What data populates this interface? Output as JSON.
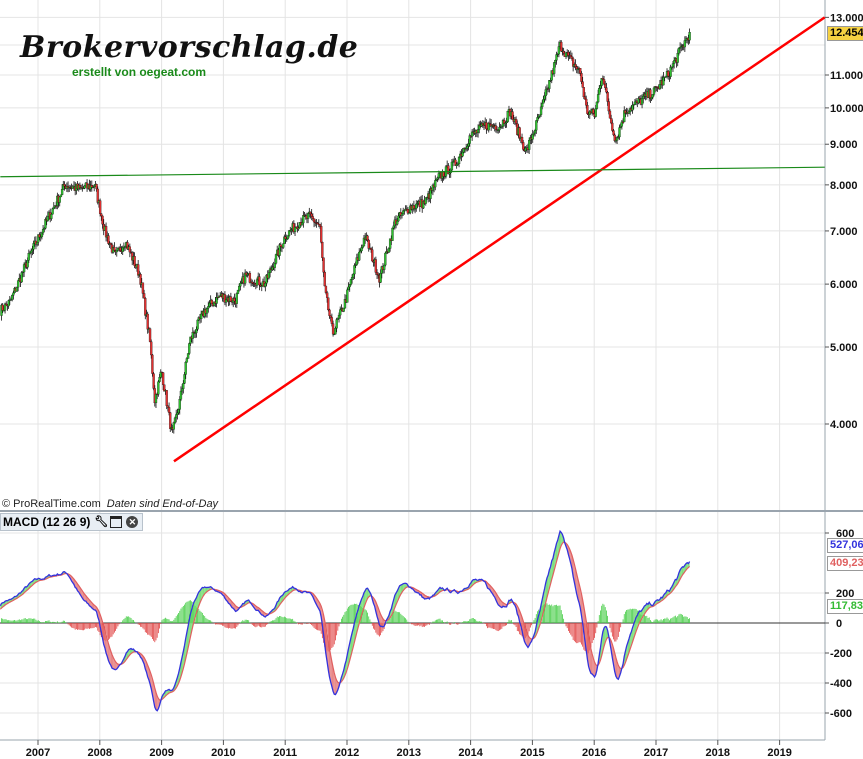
{
  "logo": {
    "title": "Brokervorschlag.de",
    "subtitle": "erstellt von oegeat.com"
  },
  "credit": {
    "source": "© ProRealTime.com",
    "note": "Daten sind End-of-Day"
  },
  "macd_panel": {
    "label": "MACD (12 26 9)",
    "icons": [
      "wrench-icon",
      "window-icon",
      "close-icon"
    ]
  },
  "colors": {
    "up": "#2fbf2f",
    "down": "#e03030",
    "trend_support": "#ff0000",
    "horizontal": "#1a8a1a",
    "macd": "#3333dd",
    "signal": "#e06060",
    "fill_pos": "#7ee07e",
    "fill_neg": "#e88888",
    "last_price_bg": "#f5d142"
  },
  "chart_data": [
    {
      "type": "candlestick",
      "scale": "log",
      "xlabel": "",
      "ylabel": "",
      "x_ticks": [
        "2007",
        "2008",
        "2009",
        "2010",
        "2011",
        "2012",
        "2013",
        "2014",
        "2015",
        "2016",
        "2017",
        "2018",
        "2019"
      ],
      "xlim": [
        2006.39,
        2019.73
      ],
      "y_ticks": [
        "4.000",
        "5.000",
        "6.000",
        "7.000",
        "8.000",
        "9.000",
        "10.000",
        "11.000",
        "13.000"
      ],
      "y_tick_values": [
        4000,
        5000,
        6000,
        7000,
        8000,
        9000,
        10000,
        11000,
        13000
      ],
      "ylim": [
        3400,
        13300
      ],
      "last_price": "12.454",
      "grid": true,
      "close_path": [
        [
          2006.39,
          5560
        ],
        [
          2006.55,
          5700
        ],
        [
          2006.87,
          6530
        ],
        [
          2007.19,
          7330
        ],
        [
          2007.44,
          8000
        ],
        [
          2007.68,
          7900
        ],
        [
          2007.92,
          8000
        ],
        [
          2008.08,
          7000
        ],
        [
          2008.25,
          6500
        ],
        [
          2008.41,
          6800
        ],
        [
          2008.65,
          6150
        ],
        [
          2008.81,
          5100
        ],
        [
          2008.89,
          4290
        ],
        [
          2009.0,
          4670
        ],
        [
          2009.17,
          3870
        ],
        [
          2009.3,
          4290
        ],
        [
          2009.46,
          5100
        ],
        [
          2009.7,
          5560
        ],
        [
          2009.94,
          5800
        ],
        [
          2010.19,
          5720
        ],
        [
          2010.35,
          6150
        ],
        [
          2010.67,
          6000
        ],
        [
          2011.0,
          6900
        ],
        [
          2011.24,
          7200
        ],
        [
          2011.4,
          7300
        ],
        [
          2011.56,
          7100
        ],
        [
          2011.64,
          5900
        ],
        [
          2011.77,
          5200
        ],
        [
          2011.97,
          5700
        ],
        [
          2012.13,
          6300
        ],
        [
          2012.29,
          6900
        ],
        [
          2012.53,
          6100
        ],
        [
          2012.78,
          7200
        ],
        [
          2013.02,
          7500
        ],
        [
          2013.26,
          7600
        ],
        [
          2013.5,
          8200
        ],
        [
          2013.75,
          8500
        ],
        [
          2013.99,
          9200
        ],
        [
          2014.23,
          9500
        ],
        [
          2014.48,
          9500
        ],
        [
          2014.64,
          9900
        ],
        [
          2014.8,
          9200
        ],
        [
          2014.9,
          8800
        ],
        [
          2015.12,
          9800
        ],
        [
          2015.28,
          10800
        ],
        [
          2015.45,
          12000
        ],
        [
          2015.61,
          11500
        ],
        [
          2015.77,
          11100
        ],
        [
          2015.88,
          9900
        ],
        [
          2016.01,
          9800
        ],
        [
          2016.13,
          11100
        ],
        [
          2016.26,
          9700
        ],
        [
          2016.35,
          9100
        ],
        [
          2016.5,
          9900
        ],
        [
          2016.74,
          10200
        ],
        [
          2016.98,
          10500
        ],
        [
          2017.19,
          11000
        ],
        [
          2017.39,
          11800
        ],
        [
          2017.55,
          12454
        ]
      ],
      "lines": [
        {
          "kind": "support-trendline",
          "from": [
            2009.2,
            3590
          ],
          "to": [
            2019.73,
            13000
          ]
        },
        {
          "kind": "horizontal-line",
          "from": [
            2006.39,
            8190
          ],
          "to": [
            2019.73,
            8420
          ]
        }
      ]
    },
    {
      "type": "macd",
      "params": [
        12,
        26,
        9
      ],
      "y_ticks": [
        "600",
        "200",
        "0",
        "-200",
        "-400",
        "-600"
      ],
      "y_tick_values": [
        600,
        200,
        0,
        -200,
        -400,
        -600
      ],
      "ylim": [
        -780,
        760
      ],
      "last_values": {
        "macd": "527,06",
        "signal": "409,23",
        "histogram": "117,83"
      }
    }
  ]
}
